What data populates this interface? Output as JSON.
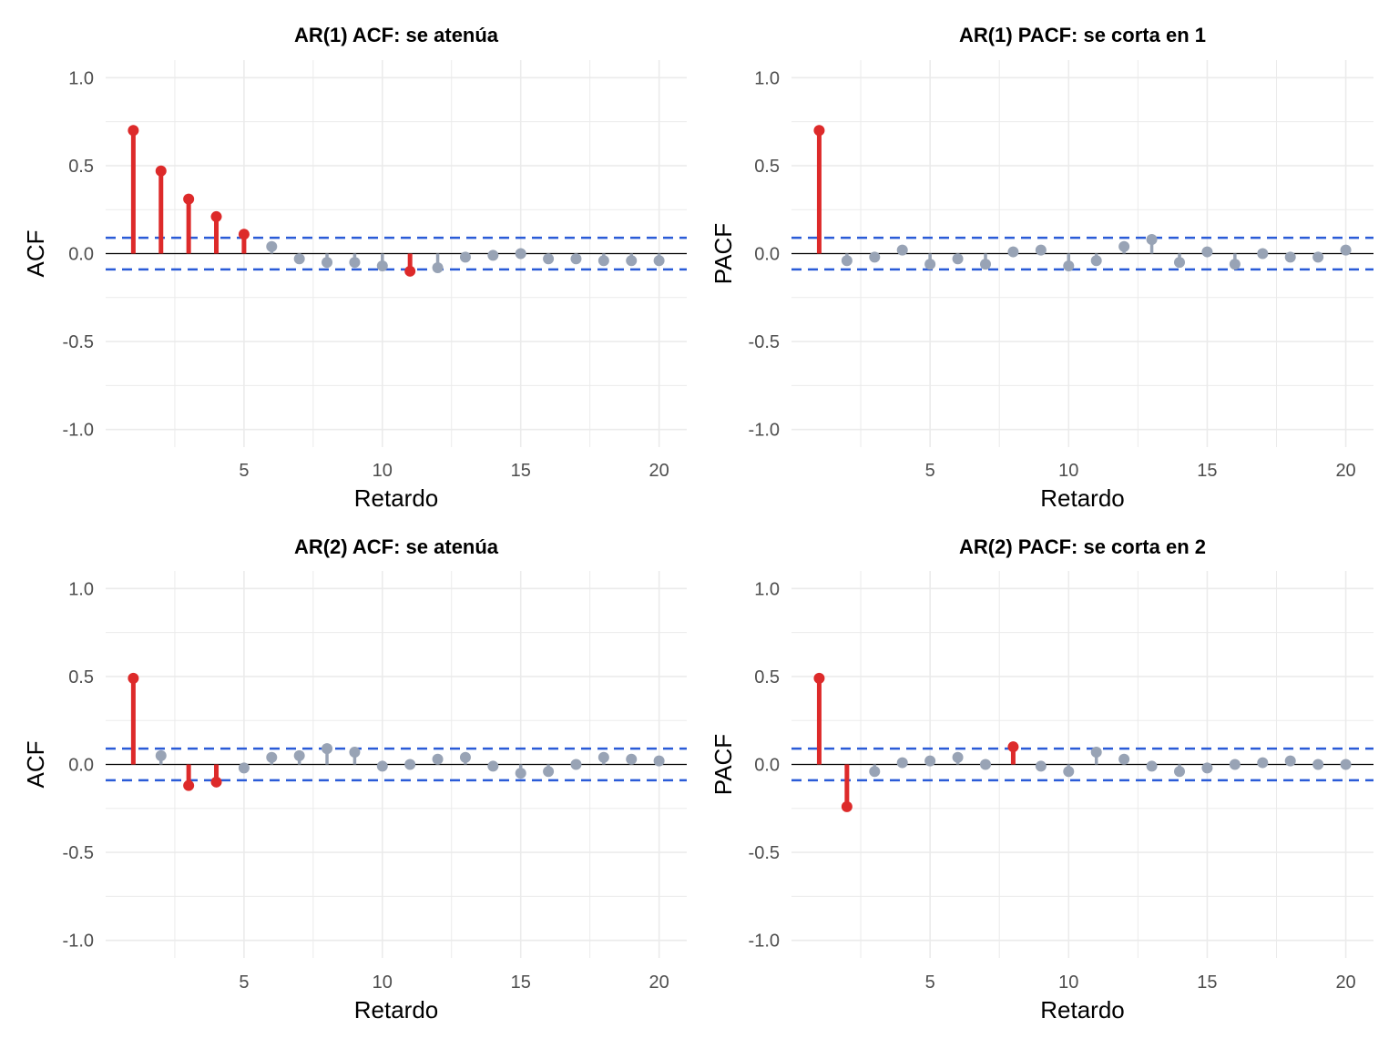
{
  "chart_data": [
    {
      "type": "lollipop",
      "title": "AR(1) ACF: se atenúa",
      "xlabel": "Retardo",
      "ylabel": "ACF",
      "x_ticks": [
        5,
        10,
        15,
        20
      ],
      "y_ticks": [
        1.0,
        0.5,
        0.0,
        -0.5,
        -1.0
      ],
      "y_tick_labels": [
        "1.0",
        "0.5",
        "0.0",
        "-0.5",
        "-1.0"
      ],
      "xlim": [
        0,
        21
      ],
      "ylim": [
        -1.1,
        1.1
      ],
      "confidence_bound": 0.09,
      "lags": [
        1,
        2,
        3,
        4,
        5,
        6,
        7,
        8,
        9,
        10,
        11,
        12,
        13,
        14,
        15,
        16,
        17,
        18,
        19,
        20
      ],
      "values": [
        0.7,
        0.47,
        0.31,
        0.21,
        0.11,
        0.04,
        -0.03,
        -0.05,
        -0.05,
        -0.07,
        -0.1,
        -0.08,
        -0.02,
        -0.01,
        0.0,
        -0.03,
        -0.03,
        -0.04,
        -0.04,
        -0.04
      ]
    },
    {
      "type": "lollipop",
      "title": "AR(1) PACF: se corta en 1",
      "xlabel": "Retardo",
      "ylabel": "PACF",
      "x_ticks": [
        5,
        10,
        15,
        20
      ],
      "y_ticks": [
        1.0,
        0.5,
        0.0,
        -0.5,
        -1.0
      ],
      "y_tick_labels": [
        "1.0",
        "0.5",
        "0.0",
        "-0.5",
        "-1.0"
      ],
      "xlim": [
        0,
        21
      ],
      "ylim": [
        -1.1,
        1.1
      ],
      "confidence_bound": 0.09,
      "lags": [
        1,
        2,
        3,
        4,
        5,
        6,
        7,
        8,
        9,
        10,
        11,
        12,
        13,
        14,
        15,
        16,
        17,
        18,
        19,
        20
      ],
      "values": [
        0.7,
        -0.04,
        -0.02,
        0.02,
        -0.06,
        -0.03,
        -0.06,
        0.01,
        0.02,
        -0.07,
        -0.04,
        0.04,
        0.08,
        -0.05,
        0.01,
        -0.06,
        0.0,
        -0.02,
        -0.02,
        0.02
      ]
    },
    {
      "type": "lollipop",
      "title": "AR(2) ACF: se atenúa",
      "xlabel": "Retardo",
      "ylabel": "ACF",
      "x_ticks": [
        5,
        10,
        15,
        20
      ],
      "y_ticks": [
        1.0,
        0.5,
        0.0,
        -0.5,
        -1.0
      ],
      "y_tick_labels": [
        "1.0",
        "0.5",
        "0.0",
        "-0.5",
        "-1.0"
      ],
      "xlim": [
        0,
        21
      ],
      "ylim": [
        -1.1,
        1.1
      ],
      "confidence_bound": 0.09,
      "lags": [
        1,
        2,
        3,
        4,
        5,
        6,
        7,
        8,
        9,
        10,
        11,
        12,
        13,
        14,
        15,
        16,
        17,
        18,
        19,
        20
      ],
      "values": [
        0.49,
        0.05,
        -0.12,
        -0.1,
        -0.02,
        0.04,
        0.05,
        0.09,
        0.07,
        -0.01,
        0.0,
        0.03,
        0.04,
        -0.01,
        -0.05,
        -0.04,
        0.0,
        0.04,
        0.03,
        0.02
      ]
    },
    {
      "type": "lollipop",
      "title": "AR(2) PACF: se corta en 2",
      "xlabel": "Retardo",
      "ylabel": "PACF",
      "x_ticks": [
        5,
        10,
        15,
        20
      ],
      "y_ticks": [
        1.0,
        0.5,
        0.0,
        -0.5,
        -1.0
      ],
      "y_tick_labels": [
        "1.0",
        "0.5",
        "0.0",
        "-0.5",
        "-1.0"
      ],
      "xlim": [
        0,
        21
      ],
      "ylim": [
        -1.1,
        1.1
      ],
      "confidence_bound": 0.09,
      "lags": [
        1,
        2,
        3,
        4,
        5,
        6,
        7,
        8,
        9,
        10,
        11,
        12,
        13,
        14,
        15,
        16,
        17,
        18,
        19,
        20
      ],
      "values": [
        0.49,
        -0.24,
        -0.04,
        0.01,
        0.02,
        0.04,
        0.0,
        0.1,
        -0.01,
        -0.04,
        0.07,
        0.03,
        -0.01,
        -0.04,
        -0.02,
        0.0,
        0.01,
        0.02,
        0.0,
        0.0
      ]
    }
  ],
  "colors": {
    "significant": "#dd2a2a",
    "non_significant": "#98a3b5",
    "confidence_band": "#2a5bd7",
    "zero_line": "#000000",
    "grid": "#ebebeb"
  }
}
